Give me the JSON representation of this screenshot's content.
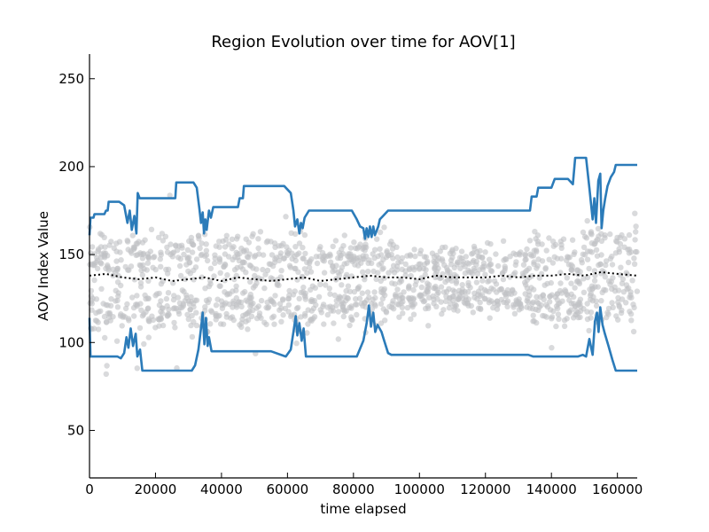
{
  "chart_data": {
    "type": "scatter",
    "title": "Region Evolution over time for AOV[1]",
    "xlabel": "time elapsed",
    "ylabel": "AOV Index Value",
    "xlim": [
      0,
      166000
    ],
    "ylim": [
      23,
      264
    ],
    "xticks": [
      0,
      20000,
      40000,
      60000,
      80000,
      100000,
      120000,
      140000,
      160000
    ],
    "yticks": [
      50,
      100,
      150,
      200,
      250
    ],
    "grid": false,
    "colors": {
      "upper_bound": "#2b7bb9",
      "lower_bound": "#2b7bb9",
      "scatter": "#bfc1c4",
      "mean": "#000000"
    },
    "series": [
      {
        "role": "upper_bound",
        "style": "solid",
        "points": [
          [
            0,
            161
          ],
          [
            300,
            171
          ],
          [
            1200,
            171
          ],
          [
            1500,
            173
          ],
          [
            4500,
            173
          ],
          [
            5000,
            175
          ],
          [
            5500,
            175
          ],
          [
            5800,
            180
          ],
          [
            9000,
            180
          ],
          [
            10500,
            178
          ],
          [
            11500,
            168
          ],
          [
            12200,
            175
          ],
          [
            12800,
            164
          ],
          [
            13600,
            172
          ],
          [
            14200,
            162
          ],
          [
            14600,
            185
          ],
          [
            15200,
            182
          ],
          [
            26000,
            182
          ],
          [
            26300,
            191
          ],
          [
            31500,
            191
          ],
          [
            32500,
            188
          ],
          [
            33300,
            176
          ],
          [
            33800,
            168
          ],
          [
            34300,
            174
          ],
          [
            34700,
            162
          ],
          [
            35100,
            170
          ],
          [
            35500,
            164
          ],
          [
            36200,
            175
          ],
          [
            36800,
            171
          ],
          [
            37500,
            177
          ],
          [
            45000,
            177
          ],
          [
            45500,
            182
          ],
          [
            46500,
            182
          ],
          [
            46800,
            189
          ],
          [
            59000,
            189
          ],
          [
            61000,
            185
          ],
          [
            61800,
            175
          ],
          [
            62300,
            166
          ],
          [
            63000,
            170
          ],
          [
            63600,
            162
          ],
          [
            64100,
            168
          ],
          [
            64600,
            165
          ],
          [
            65200,
            171
          ],
          [
            66500,
            175
          ],
          [
            79500,
            175
          ],
          [
            81000,
            170
          ],
          [
            82000,
            166
          ],
          [
            83000,
            165
          ],
          [
            83500,
            159
          ],
          [
            84000,
            165
          ],
          [
            84500,
            160
          ],
          [
            85000,
            166
          ],
          [
            85500,
            160
          ],
          [
            86000,
            166
          ],
          [
            86500,
            161
          ],
          [
            87500,
            166
          ],
          [
            88000,
            170
          ],
          [
            89000,
            172
          ],
          [
            90500,
            175
          ],
          [
            133500,
            175
          ],
          [
            134000,
            183
          ],
          [
            135500,
            183
          ],
          [
            136000,
            188
          ],
          [
            140000,
            188
          ],
          [
            141000,
            193
          ],
          [
            145000,
            193
          ],
          [
            146500,
            190
          ],
          [
            147200,
            205
          ],
          [
            150500,
            205
          ],
          [
            151500,
            188
          ],
          [
            152500,
            170
          ],
          [
            153000,
            182
          ],
          [
            153500,
            168
          ],
          [
            154200,
            192
          ],
          [
            154800,
            196
          ],
          [
            155200,
            165
          ],
          [
            155700,
            175
          ],
          [
            156300,
            182
          ],
          [
            157000,
            189
          ],
          [
            158000,
            194
          ],
          [
            159000,
            197
          ],
          [
            159500,
            201
          ],
          [
            166000,
            201
          ]
        ]
      },
      {
        "role": "lower_bound",
        "style": "solid",
        "points": [
          [
            0,
            114
          ],
          [
            300,
            92
          ],
          [
            8500,
            92
          ],
          [
            9500,
            91
          ],
          [
            10500,
            94
          ],
          [
            11200,
            103
          ],
          [
            11800,
            97
          ],
          [
            12500,
            108
          ],
          [
            13200,
            98
          ],
          [
            14000,
            105
          ],
          [
            14500,
            92
          ],
          [
            15300,
            96
          ],
          [
            16000,
            84
          ],
          [
            31000,
            84
          ],
          [
            32000,
            87
          ],
          [
            33000,
            96
          ],
          [
            33800,
            108
          ],
          [
            34300,
            117
          ],
          [
            34800,
            99
          ],
          [
            35300,
            114
          ],
          [
            35800,
            98
          ],
          [
            36200,
            103
          ],
          [
            37000,
            95
          ],
          [
            55000,
            95
          ],
          [
            59500,
            92
          ],
          [
            61000,
            96
          ],
          [
            61800,
            106
          ],
          [
            62500,
            115
          ],
          [
            63000,
            104
          ],
          [
            63600,
            111
          ],
          [
            64300,
            101
          ],
          [
            64900,
            108
          ],
          [
            65600,
            92
          ],
          [
            79000,
            92
          ],
          [
            81000,
            92
          ],
          [
            83000,
            101
          ],
          [
            84000,
            111
          ],
          [
            84700,
            121
          ],
          [
            85300,
            109
          ],
          [
            86000,
            117
          ],
          [
            86600,
            106
          ],
          [
            87300,
            110
          ],
          [
            88500,
            106
          ],
          [
            89300,
            101
          ],
          [
            90500,
            94
          ],
          [
            91500,
            93
          ],
          [
            133000,
            93
          ],
          [
            134500,
            92
          ],
          [
            138000,
            92
          ],
          [
            140000,
            92
          ],
          [
            142000,
            92
          ],
          [
            148000,
            92
          ],
          [
            149500,
            93
          ],
          [
            150500,
            92
          ],
          [
            151500,
            102
          ],
          [
            152500,
            93
          ],
          [
            153200,
            112
          ],
          [
            153800,
            117
          ],
          [
            154300,
            106
          ],
          [
            154800,
            120
          ],
          [
            155500,
            110
          ],
          [
            156200,
            105
          ],
          [
            157300,
            98
          ],
          [
            158500,
            90
          ],
          [
            159500,
            84
          ],
          [
            166000,
            84
          ]
        ]
      },
      {
        "role": "mean",
        "style": "dotted",
        "points": [
          [
            0,
            138
          ],
          [
            5000,
            139
          ],
          [
            10000,
            137
          ],
          [
            15000,
            136
          ],
          [
            20000,
            137
          ],
          [
            25000,
            135
          ],
          [
            30000,
            136
          ],
          [
            35000,
            137
          ],
          [
            40000,
            135
          ],
          [
            45000,
            137
          ],
          [
            50000,
            136
          ],
          [
            55000,
            135
          ],
          [
            60000,
            136
          ],
          [
            65000,
            137
          ],
          [
            70000,
            135
          ],
          [
            75000,
            136
          ],
          [
            80000,
            137
          ],
          [
            85000,
            138
          ],
          [
            90000,
            137
          ],
          [
            95000,
            137
          ],
          [
            100000,
            136
          ],
          [
            105000,
            138
          ],
          [
            110000,
            137
          ],
          [
            115000,
            137
          ],
          [
            120000,
            137
          ],
          [
            125000,
            138
          ],
          [
            130000,
            137
          ],
          [
            135000,
            138
          ],
          [
            140000,
            138
          ],
          [
            145000,
            139
          ],
          [
            150000,
            138
          ],
          [
            155000,
            140
          ],
          [
            160000,
            139
          ],
          [
            166000,
            138
          ]
        ]
      },
      {
        "role": "scatter_envelope",
        "bands": [
          [
            0,
            20000,
            148,
            116,
            14
          ],
          [
            20000,
            34000,
            150,
            121,
            13
          ],
          [
            34000,
            45000,
            148,
            120,
            14
          ],
          [
            45000,
            64000,
            148,
            121,
            13
          ],
          [
            64000,
            80000,
            146,
            122,
            12
          ],
          [
            80000,
            92000,
            149,
            124,
            12
          ],
          [
            92000,
            133000,
            145,
            126,
            10
          ],
          [
            133000,
            148000,
            148,
            122,
            13
          ],
          [
            148000,
            166000,
            152,
            125,
            15
          ]
        ]
      }
    ]
  }
}
